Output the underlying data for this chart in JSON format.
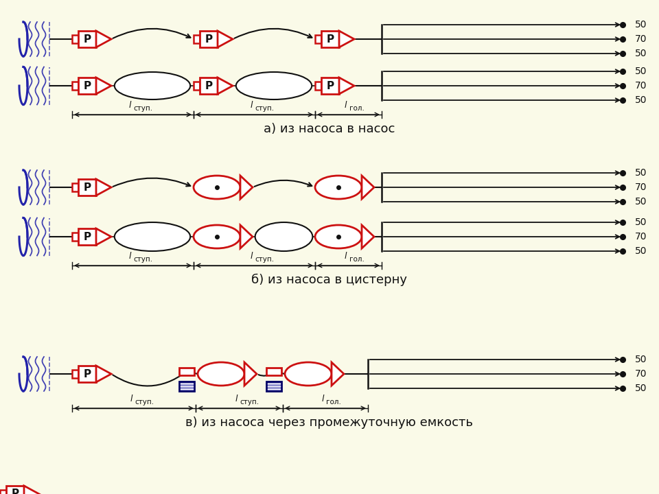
{
  "bg_color": "#FAFAE8",
  "white": "#FFFFFF",
  "title_a": "а) из насоса в насос",
  "title_b": "б) из насоса в цистерну",
  "title_c": "в) из насоса через промежуточную емкость",
  "hose_labels": [
    "50",
    "70",
    "50"
  ],
  "red": "#CC1111",
  "blue": "#2222AA",
  "dark_blue": "#000066",
  "black": "#111111",
  "gray_line": "#888888"
}
